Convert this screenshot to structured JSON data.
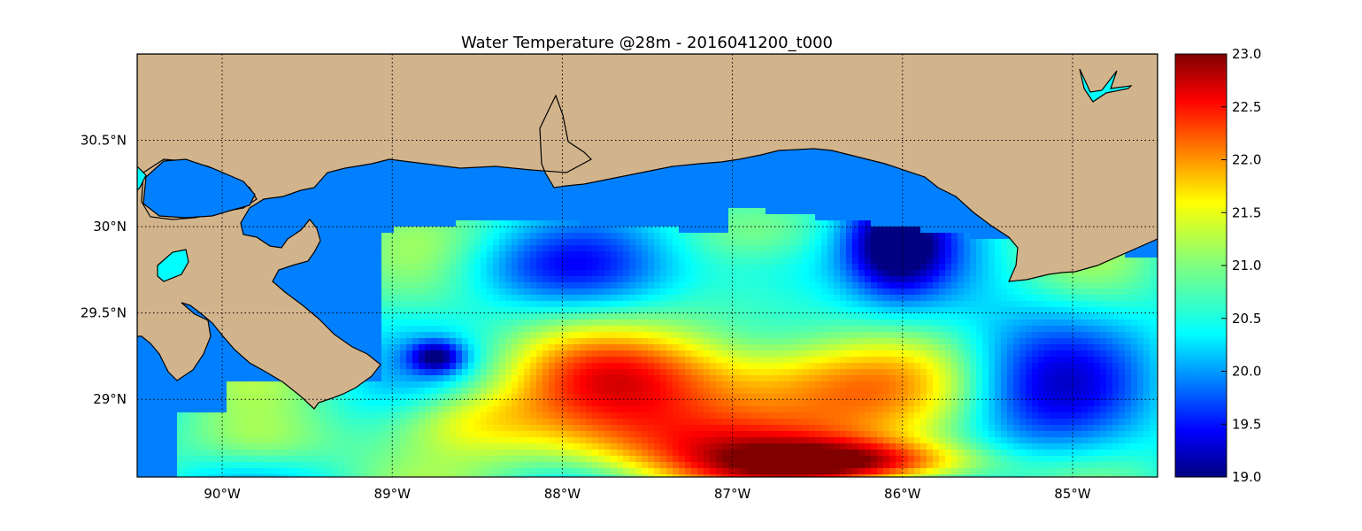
{
  "title": "Water Temperature @28m - 2016041200_t000",
  "lon_range": [
    -90.5,
    -84.5
  ],
  "lat_range": [
    28.55,
    31.0
  ],
  "lon_ticks": [
    {
      "value": -90,
      "label": "90°W"
    },
    {
      "value": -89,
      "label": "89°W"
    },
    {
      "value": -88,
      "label": "88°W"
    },
    {
      "value": -87,
      "label": "87°W"
    },
    {
      "value": -86,
      "label": "86°W"
    },
    {
      "value": -85,
      "label": "85°W"
    }
  ],
  "lat_ticks": [
    {
      "value": 30.5,
      "label": "30.5°N"
    },
    {
      "value": 30.0,
      "label": "30°N"
    },
    {
      "value": 29.5,
      "label": "29.5°N"
    },
    {
      "value": 29.0,
      "label": "29°N"
    }
  ],
  "colorbar": {
    "min": 19.0,
    "max": 23.0,
    "colormap": "jet",
    "ticks": [
      {
        "value": 23.0,
        "label": "23.0"
      },
      {
        "value": 22.5,
        "label": "22.5"
      },
      {
        "value": 22.0,
        "label": "22.0"
      },
      {
        "value": 21.5,
        "label": "21.5"
      },
      {
        "value": 21.0,
        "label": "21.0"
      },
      {
        "value": 20.5,
        "label": "20.5"
      },
      {
        "value": 20.0,
        "label": "20.0"
      },
      {
        "value": 19.5,
        "label": "19.5"
      },
      {
        "value": 19.0,
        "label": "19.0"
      }
    ]
  },
  "colors": {
    "land": "#d2b48c",
    "no_data_water": "#0080ff",
    "lake": "#00ffff",
    "coastline": "#000000",
    "gridline": "#000000"
  },
  "gridlines": "dotted"
}
